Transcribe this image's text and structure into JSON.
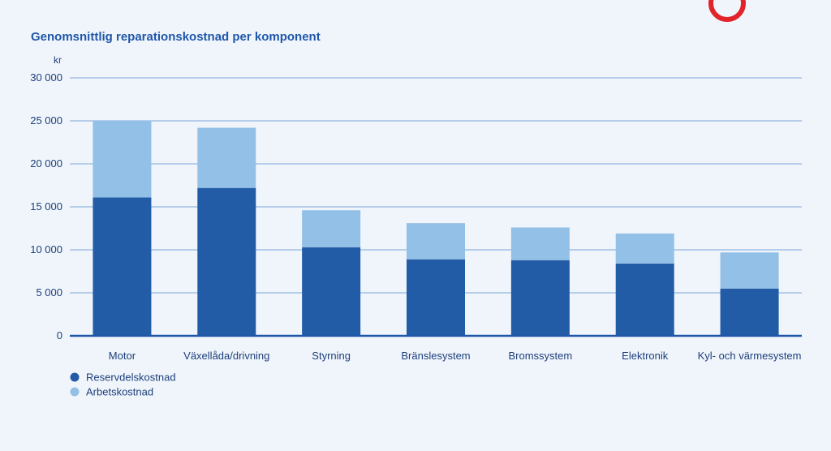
{
  "chart_data": {
    "type": "bar",
    "stacked": true,
    "title": "Genomsnittlig reparationskostnad per komponent",
    "ylabel": "kr",
    "ylim": [
      0,
      30000
    ],
    "yticks": [
      0,
      5000,
      10000,
      15000,
      20000,
      25000,
      30000
    ],
    "ytick_labels": [
      "0",
      "5 000",
      "10 000",
      "15 000",
      "20 000",
      "25 000",
      "30 000"
    ],
    "grid": true,
    "legend_position": "bottom-left",
    "categories": [
      "Motor",
      "Växellåda/drivning",
      "Styrning",
      "Bränslesystem",
      "Bromssystem",
      "Elektronik",
      "Kyl- och värmesystem"
    ],
    "series": [
      {
        "name": "Reservdelskostnad",
        "color": "#235ca6",
        "values": [
          16100,
          17200,
          10300,
          8900,
          8800,
          8400,
          5500
        ]
      },
      {
        "name": "Arbetskostnad",
        "color": "#93c0e6",
        "values": [
          8900,
          7000,
          4300,
          4200,
          3800,
          3500,
          4200
        ]
      }
    ]
  },
  "colors": {
    "background": "#f0f5fc",
    "title": "#1f57a8",
    "text": "#1d3f7a",
    "grid": "#7ba7d7",
    "axis": "#1f57a8",
    "logo_ring": "#e0242a"
  },
  "logo_icon": "red-ring-logo"
}
